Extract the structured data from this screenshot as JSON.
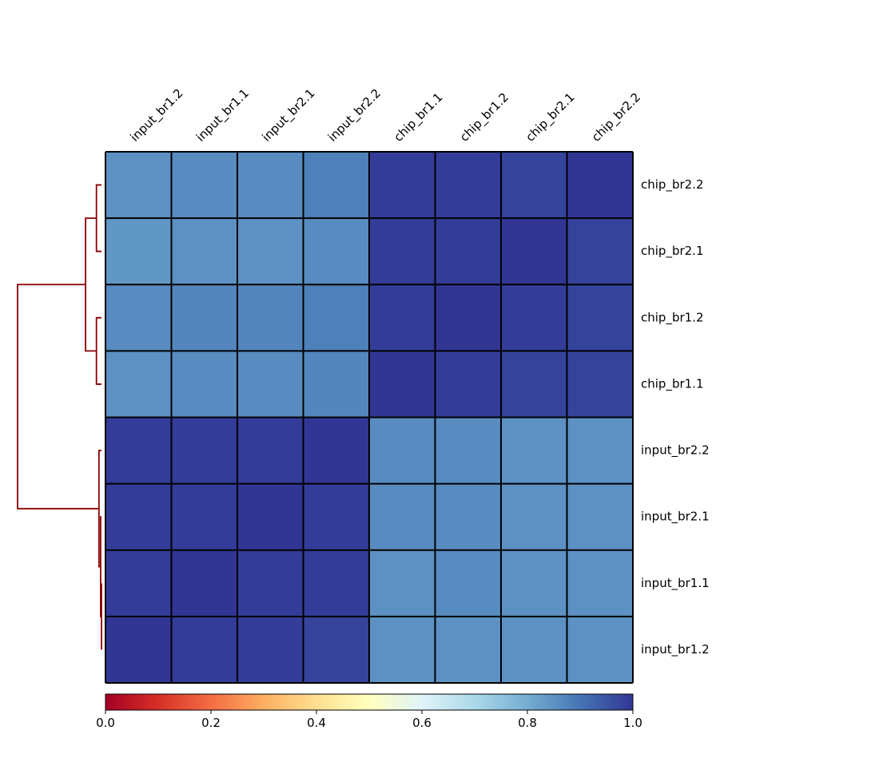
{
  "chart_data": {
    "type": "heatmap",
    "title": "",
    "xlabel": "",
    "ylabel": "",
    "x_labels": [
      "input_br1.2",
      "input_br1.1",
      "input_br2.1",
      "input_br2.2",
      "chip_br1.1",
      "chip_br1.2",
      "chip_br2.1",
      "chip_br2.2"
    ],
    "y_labels": [
      "chip_br2.2",
      "chip_br2.1",
      "chip_br1.2",
      "chip_br1.1",
      "input_br2.2",
      "input_br2.1",
      "input_br1.1",
      "input_br1.2"
    ],
    "values": [
      [
        0.85,
        0.86,
        0.86,
        0.88,
        0.99,
        0.99,
        0.98,
        1.0
      ],
      [
        0.84,
        0.85,
        0.85,
        0.86,
        0.99,
        0.99,
        1.0,
        0.98
      ],
      [
        0.86,
        0.87,
        0.87,
        0.88,
        0.99,
        1.0,
        0.99,
        0.98
      ],
      [
        0.85,
        0.86,
        0.86,
        0.87,
        1.0,
        0.99,
        0.98,
        0.98
      ],
      [
        0.99,
        0.99,
        0.99,
        1.0,
        0.86,
        0.86,
        0.85,
        0.85
      ],
      [
        0.99,
        0.99,
        1.0,
        0.99,
        0.86,
        0.86,
        0.85,
        0.85
      ],
      [
        0.99,
        1.0,
        0.99,
        0.99,
        0.85,
        0.86,
        0.85,
        0.85
      ],
      [
        1.0,
        0.99,
        0.99,
        0.98,
        0.85,
        0.85,
        0.85,
        0.85
      ]
    ],
    "colormap": "RdYlBu",
    "colormap_stops": [
      "#a50026",
      "#d73027",
      "#f46d43",
      "#fdae61",
      "#fee090",
      "#ffffbf",
      "#e0f3f8",
      "#abd9e9",
      "#74add1",
      "#4575b4",
      "#313695"
    ],
    "colorbar": {
      "range": [
        0.0,
        1.0
      ],
      "ticks": [
        0.0,
        0.2,
        0.4,
        0.6,
        0.8,
        1.0
      ],
      "tick_labels": [
        "0.0",
        "0.2",
        "0.4",
        "0.6",
        "0.8",
        "1.0"
      ],
      "orientation": "horizontal"
    },
    "grid": true,
    "grid_color": "#000000",
    "dendrogram": {
      "side": "left",
      "color": "#8b0000",
      "links": [
        {
          "id": "a",
          "left": 0,
          "right": 1,
          "height": 0.006
        },
        {
          "id": "b",
          "left": 2,
          "right": 3,
          "height": 0.006
        },
        {
          "id": "c",
          "left": "a",
          "right": "b",
          "height": 0.019
        },
        {
          "id": "d",
          "left": 6,
          "right": 7,
          "height": 0.0
        },
        {
          "id": "e",
          "left": 5,
          "right": "d",
          "height": 0.001
        },
        {
          "id": "f",
          "left": 4,
          "right": "e",
          "height": 0.003
        },
        {
          "id": "g",
          "left": "c",
          "right": "f",
          "height": 0.1
        }
      ]
    }
  }
}
